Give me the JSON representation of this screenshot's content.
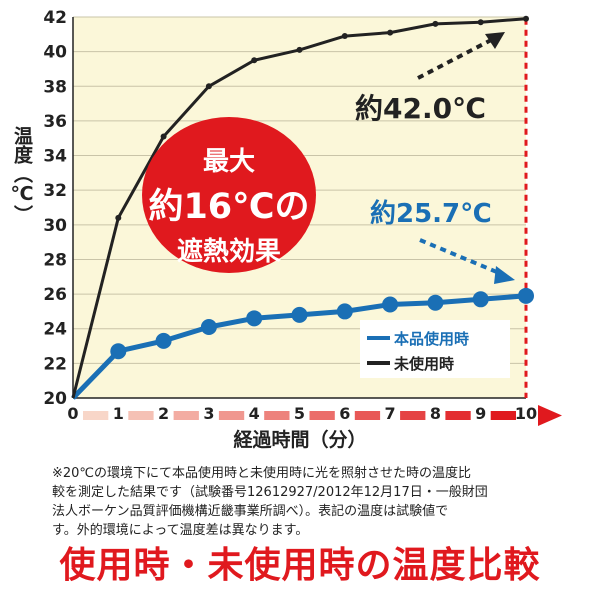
{
  "chart_data": {
    "type": "line",
    "x": [
      0,
      1,
      2,
      3,
      4,
      5,
      6,
      7,
      8,
      9,
      10
    ],
    "xlim": [
      0,
      10
    ],
    "ylim": [
      20,
      42
    ],
    "y_ticks": [
      20,
      22,
      24,
      26,
      28,
      30,
      32,
      34,
      36,
      38,
      40,
      42
    ],
    "x_ticks": [
      0,
      1,
      2,
      3,
      4,
      5,
      6,
      7,
      8,
      9,
      10
    ],
    "ylabel": "温度（℃）",
    "xlabel": "経過時間（分）",
    "grid": "horizontal",
    "legend_position": "bottom-right",
    "series": [
      {
        "name": "本品使用時",
        "color": "#1a6fb5",
        "values": [
          20.0,
          22.7,
          23.3,
          24.1,
          24.6,
          24.8,
          25.0,
          25.4,
          25.5,
          25.7,
          25.9
        ]
      },
      {
        "name": "未使用時",
        "color": "#222222",
        "values": [
          20.0,
          30.4,
          35.1,
          38.0,
          39.5,
          40.1,
          40.9,
          41.1,
          41.6,
          41.7,
          41.9
        ]
      }
    ],
    "annotations": {
      "max_black": "約42.0℃",
      "max_blue": "約25.7℃",
      "badge_lines": [
        "最大",
        "約16℃の",
        "遮熱効果"
      ]
    }
  },
  "colors": {
    "plot_bg": "#fbf7d9",
    "accent_red": "#e0191e",
    "blue": "#1a6fb5",
    "black": "#222222"
  },
  "note": [
    "※20℃の環境下にて本品使用時と未使用時に光を照射させた時の温度比",
    "較を測定した結果です（試験番号12612927/2012年12月17日・一般財団",
    "法人ボーケン品質評価機構近畿事業所調べ）。表記の温度は試験値で",
    "す。外的環境によって温度差は異なります。"
  ],
  "headline": "使用時・未使用時の温度比較"
}
